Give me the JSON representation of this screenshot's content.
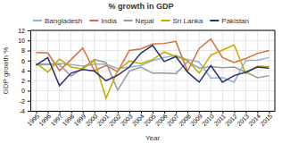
{
  "chart_data": {
    "type": "line",
    "title": "% growth in GDP",
    "xlabel": "Year",
    "ylabel": "GDP growth %",
    "x": [
      1995,
      1996,
      1997,
      1998,
      1999,
      2000,
      2001,
      2002,
      2003,
      2004,
      2005,
      2006,
      2007,
      2008,
      2009,
      2010,
      2011,
      2012,
      2013,
      2014,
      2015
    ],
    "series": [
      {
        "name": "Bangladesh",
        "color": "#8cb4d2",
        "values": [
          5.1,
          5.2,
          5.4,
          5.2,
          4.9,
          5.3,
          5.3,
          4.4,
          4.7,
          5.0,
          6.0,
          6.6,
          7.0,
          6.2,
          5.7,
          2.5,
          2.6,
          1.7,
          6.0,
          6.1,
          6.6
        ]
      },
      {
        "name": "India",
        "color": "#d4703c",
        "values": [
          7.6,
          7.5,
          4.0,
          6.2,
          8.5,
          4.0,
          5.0,
          3.8,
          8.0,
          8.3,
          9.3,
          9.4,
          9.8,
          3.9,
          8.4,
          10.3,
          6.6,
          5.6,
          6.4,
          7.4,
          8.0
        ]
      },
      {
        "name": "Nepal",
        "color": "#999999",
        "values": [
          5.3,
          5.3,
          5.2,
          2.9,
          4.5,
          6.2,
          5.6,
          0.1,
          3.9,
          4.7,
          3.5,
          3.5,
          3.4,
          5.8,
          4.5,
          4.8,
          4.6,
          4.7,
          3.7,
          2.6,
          3.0
        ]
      },
      {
        "name": "Sri Lanka",
        "color": "#c8a800",
        "values": [
          5.5,
          3.7,
          6.3,
          4.7,
          4.3,
          6.0,
          -1.5,
          4.0,
          5.9,
          5.4,
          6.2,
          7.7,
          6.8,
          6.0,
          3.5,
          7.1,
          8.1,
          9.1,
          3.4,
          4.9,
          4.8
        ]
      },
      {
        "name": "Pakistan",
        "color": "#2c3070",
        "values": [
          5.1,
          6.6,
          1.0,
          3.5,
          4.2,
          3.9,
          2.0,
          3.1,
          4.7,
          7.5,
          9.0,
          5.8,
          6.8,
          3.7,
          1.7,
          5.0,
          1.7,
          3.0,
          3.7,
          4.7,
          4.5
        ]
      }
    ],
    "xlim": [
      1994.5,
      2015.5
    ],
    "xticks": [
      1995,
      1996,
      1997,
      1998,
      1999,
      2000,
      2001,
      2002,
      2003,
      2004,
      2005,
      2006,
      2007,
      2008,
      2009,
      2010,
      2011,
      2012,
      2013,
      2014,
      2015
    ],
    "ylim": [
      -4,
      12
    ],
    "yticks": [
      -4,
      -2,
      0,
      2,
      4,
      6,
      8,
      10,
      12
    ],
    "grid": true,
    "legend": "top"
  }
}
